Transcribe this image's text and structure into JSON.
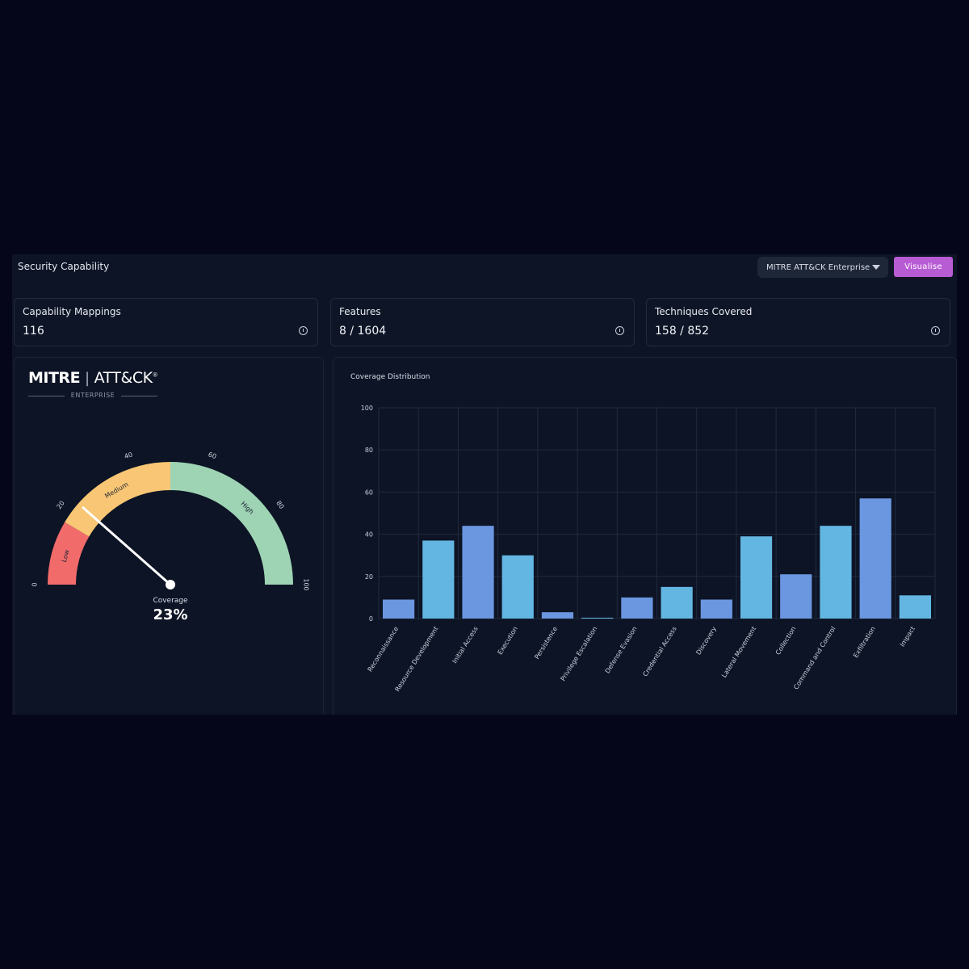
{
  "header": {
    "title": "Security Capability",
    "framework_select": "MITRE ATT&CK Enterprise",
    "visualise_label": "Visualise"
  },
  "cards": [
    {
      "label": "Capability Mappings",
      "value": "116"
    },
    {
      "label": "Features",
      "value": "8 / 1604"
    },
    {
      "label": "Techniques Covered",
      "value": "158 / 852"
    }
  ],
  "logo": {
    "left": "MITRE",
    "right": "ATT&CK",
    "mark": "®",
    "sub": "ENTERPRISE"
  },
  "gauge": {
    "coverage_label": "Coverage",
    "coverage_text": "23%",
    "value": 23,
    "min": 0,
    "max": 100,
    "ticks": [
      "0",
      "20",
      "40",
      "60",
      "80",
      "100"
    ],
    "bands": [
      {
        "label": "Low",
        "from": 0,
        "to": 17,
        "color": "#f26b6b"
      },
      {
        "label": "Medium",
        "from": 17,
        "to": 50,
        "color": "#f8c674"
      },
      {
        "label": "High",
        "from": 50,
        "to": 100,
        "color": "#9ed3b4"
      }
    ],
    "needle_color": "#ffffff"
  },
  "chart_data": {
    "type": "bar",
    "title": "Coverage Distribution",
    "xlabel": "",
    "ylabel": "",
    "ylim": [
      0,
      100
    ],
    "yticks": [
      0,
      20,
      40,
      60,
      80,
      100
    ],
    "grid": true,
    "categories": [
      "Reconnaissance",
      "Resource Development",
      "Initial Access",
      "Execution",
      "Persistence",
      "Privilege Escalation",
      "Defense Evasion",
      "Credential Access",
      "Discovery",
      "Lateral Movement",
      "Collection",
      "Command and Control",
      "Exfiltration",
      "Impact"
    ],
    "values": [
      9,
      37,
      44,
      30,
      3,
      0.4,
      10,
      15,
      9,
      39,
      21,
      44,
      57,
      11
    ],
    "colors": [
      "#6b96e0",
      "#63b6e2"
    ]
  }
}
